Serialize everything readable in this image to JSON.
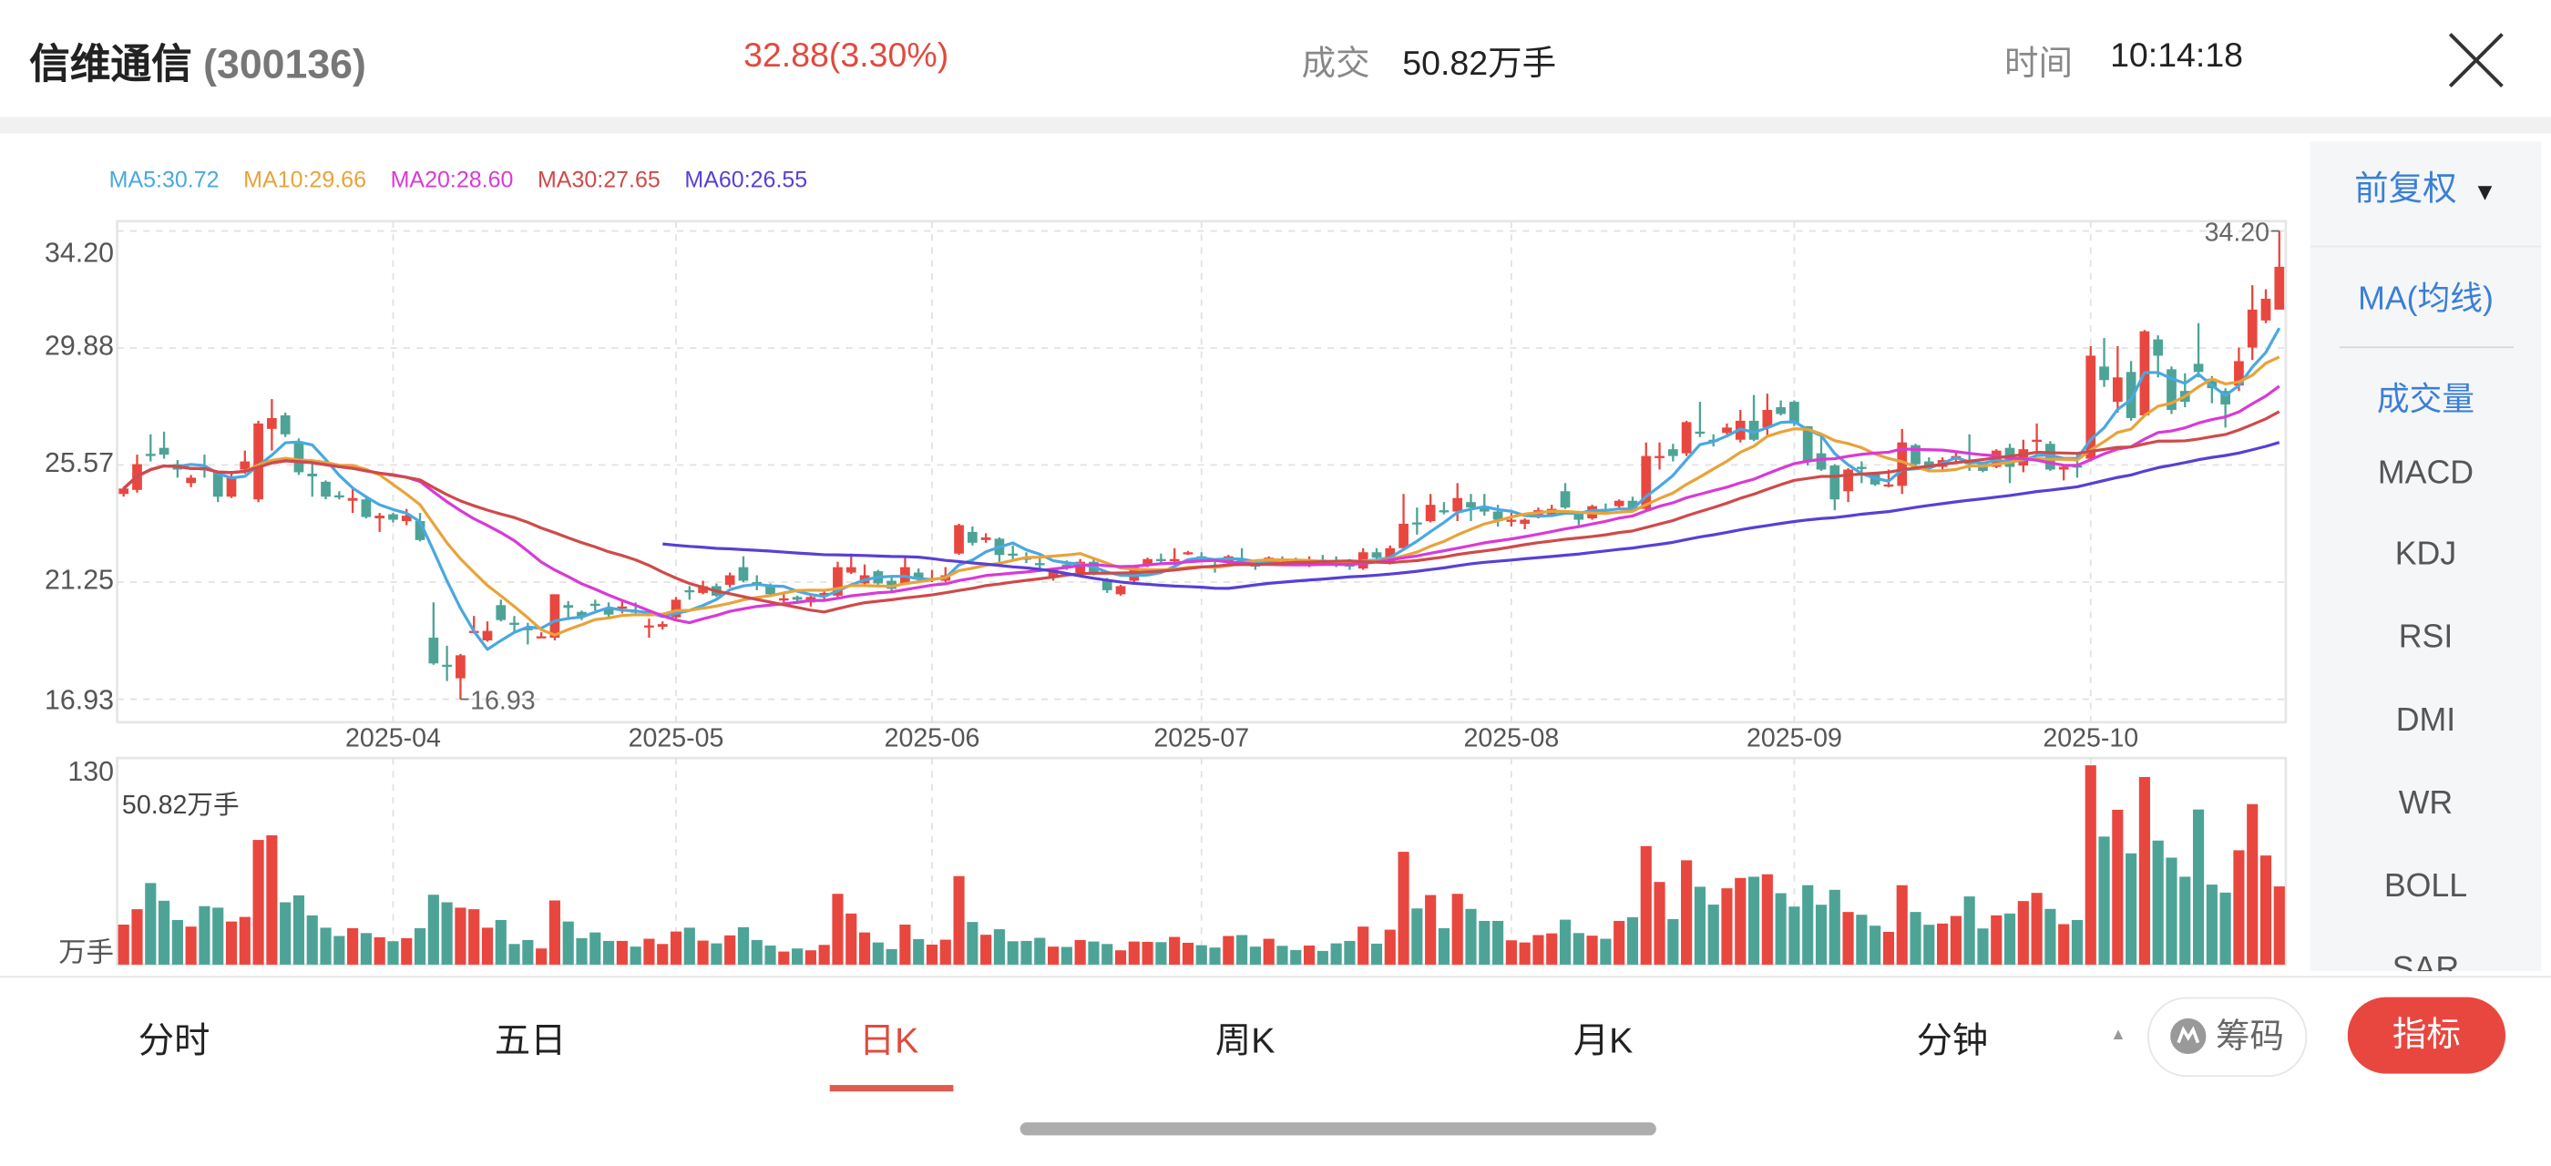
{
  "header": {
    "stock_name": "信维通信",
    "stock_code": "(300136)",
    "price_change": "32.88(3.30%)",
    "volume_label": "成交",
    "volume_value": "50.82万手",
    "time_label": "时间",
    "time_value": "10:14:18",
    "close_icon": "close-x-icon"
  },
  "legend": {
    "ma5": "MA5:30.72",
    "ma10": "MA10:29.66",
    "ma20": "MA20:28.60",
    "ma30": "MA30:27.65",
    "ma60": "MA60:26.55"
  },
  "colors": {
    "up": "#e8473f",
    "down": "#4ea397",
    "ma5": "#4aa8e0",
    "ma10": "#e8a33a",
    "ma20": "#d93ad6",
    "ma30": "#cf4a4a",
    "ma60": "#5a3fd4",
    "accent_blue": "#3a7fd6"
  },
  "side_panel": {
    "adjust": "前复权",
    "adjust_icon": "triangle-down-icon",
    "items": [
      {
        "label": "MA(均线)",
        "active": true
      },
      {
        "label": "成交量",
        "active": true
      },
      {
        "label": "MACD",
        "active": false
      },
      {
        "label": "KDJ",
        "active": false
      },
      {
        "label": "RSI",
        "active": false
      },
      {
        "label": "DMI",
        "active": false
      },
      {
        "label": "WR",
        "active": false
      },
      {
        "label": "BOLL",
        "active": false
      },
      {
        "label": "SAR",
        "active": false
      }
    ]
  },
  "tabs": [
    {
      "label": "分时",
      "active": false
    },
    {
      "label": "五日",
      "active": false
    },
    {
      "label": "日K",
      "active": true
    },
    {
      "label": "周K",
      "active": false
    },
    {
      "label": "月K",
      "active": false
    },
    {
      "label": "分钟",
      "active": false
    }
  ],
  "buttons": {
    "chips": "筹码",
    "chips_icon": "chips-logo-icon",
    "indicator": "指标"
  },
  "chart_data": {
    "type": "candlestick",
    "price_axis": {
      "ticks": [
        "34.20",
        "29.88",
        "25.57",
        "21.25",
        "16.93"
      ],
      "ylim": [
        16.08,
        34.56
      ],
      "grid": true
    },
    "x_ticks": [
      {
        "label": "2025-04",
        "index": 20
      },
      {
        "label": "2025-05",
        "index": 41
      },
      {
        "label": "2025-06",
        "index": 60
      },
      {
        "label": "2025-07",
        "index": 80
      },
      {
        "label": "2025-08",
        "index": 103
      },
      {
        "label": "2025-09",
        "index": 124
      },
      {
        "label": "2025-10",
        "index": 146
      }
    ],
    "max_label": "34.20",
    "min_label": "16.93",
    "moving_averages": [
      5,
      10,
      20,
      30,
      60
    ],
    "candle_fields": [
      "open",
      "high",
      "low",
      "close"
    ],
    "candles": [
      [
        24.5,
        24.75,
        24.4,
        24.7
      ],
      [
        24.65,
        25.95,
        24.55,
        25.6
      ],
      [
        25.98,
        26.7,
        25.7,
        25.9
      ],
      [
        26.2,
        26.8,
        25.8,
        25.95
      ],
      [
        25.6,
        25.75,
        25.1,
        25.4
      ],
      [
        24.9,
        25.2,
        24.75,
        25.1
      ],
      [
        25.45,
        25.95,
        25.1,
        25.4
      ],
      [
        25.3,
        25.35,
        24.2,
        24.4
      ],
      [
        24.4,
        25.3,
        24.35,
        25.15
      ],
      [
        25.4,
        26.1,
        25.25,
        25.7
      ],
      [
        24.3,
        27.2,
        24.2,
        27.1
      ],
      [
        26.9,
        28.0,
        26.1,
        27.3
      ],
      [
        27.4,
        27.5,
        26.6,
        26.7
      ],
      [
        26.4,
        26.55,
        25.2,
        25.3
      ],
      [
        25.25,
        25.6,
        24.4,
        25.15
      ],
      [
        24.95,
        25.0,
        24.3,
        24.4
      ],
      [
        24.45,
        24.6,
        24.3,
        24.4
      ],
      [
        24.25,
        24.7,
        23.8,
        24.35
      ],
      [
        24.3,
        24.45,
        23.6,
        23.65
      ],
      [
        23.6,
        23.8,
        23.1,
        23.7
      ],
      [
        23.75,
        23.8,
        23.45,
        23.55
      ],
      [
        23.5,
        23.95,
        23.35,
        23.7
      ],
      [
        23.5,
        23.8,
        22.75,
        22.8
      ],
      [
        19.2,
        20.5,
        18.2,
        18.25
      ],
      [
        18.2,
        18.9,
        17.6,
        18.15
      ],
      [
        17.7,
        18.6,
        16.93,
        18.55
      ],
      [
        19.4,
        20.0,
        19.35,
        19.45
      ],
      [
        19.1,
        19.8,
        19.05,
        19.45
      ],
      [
        20.4,
        20.6,
        19.8,
        19.85
      ],
      [
        19.75,
        20.0,
        19.4,
        19.7
      ],
      [
        19.55,
        19.75,
        18.95,
        19.5
      ],
      [
        19.2,
        19.4,
        19.2,
        19.25
      ],
      [
        19.2,
        20.8,
        19.1,
        20.8
      ],
      [
        20.4,
        20.55,
        19.85,
        20.3
      ],
      [
        20.15,
        20.2,
        19.85,
        19.97
      ],
      [
        20.45,
        20.6,
        20.2,
        20.4
      ],
      [
        20.25,
        20.5,
        19.95,
        20.05
      ],
      [
        20.3,
        20.55,
        20.1,
        20.35
      ],
      [
        20.2,
        20.5,
        20.05,
        20.15
      ],
      [
        19.6,
        19.9,
        19.2,
        19.65
      ],
      [
        19.6,
        19.8,
        19.5,
        19.7
      ],
      [
        19.95,
        20.7,
        19.9,
        20.6
      ],
      [
        20.95,
        21.1,
        20.6,
        20.9
      ],
      [
        20.85,
        21.3,
        20.8,
        21.1
      ],
      [
        21.1,
        21.2,
        20.7,
        20.75
      ],
      [
        21.15,
        21.6,
        21.05,
        21.5
      ],
      [
        21.8,
        22.2,
        21.25,
        21.3
      ],
      [
        21.25,
        21.5,
        20.95,
        21.2
      ],
      [
        21.15,
        21.2,
        20.7,
        20.8
      ],
      [
        20.6,
        20.8,
        20.5,
        20.65
      ],
      [
        20.7,
        20.75,
        20.45,
        20.6
      ],
      [
        20.5,
        20.75,
        20.35,
        20.7
      ],
      [
        20.8,
        20.95,
        20.6,
        20.85
      ],
      [
        20.75,
        22.0,
        20.7,
        21.8
      ],
      [
        21.6,
        22.3,
        21.55,
        21.8
      ],
      [
        21.2,
        21.9,
        21.1,
        21.5
      ],
      [
        21.65,
        21.7,
        21.15,
        21.2
      ],
      [
        21.3,
        21.45,
        20.9,
        21.0
      ],
      [
        21.2,
        22.15,
        21.15,
        21.8
      ],
      [
        21.6,
        21.75,
        21.3,
        21.35
      ],
      [
        21.35,
        21.7,
        21.25,
        21.4
      ],
      [
        21.3,
        21.8,
        21.25,
        21.5
      ],
      [
        22.3,
        23.4,
        22.25,
        23.35
      ],
      [
        23.1,
        23.3,
        22.6,
        22.7
      ],
      [
        22.8,
        23.05,
        22.7,
        22.9
      ],
      [
        22.85,
        22.9,
        22.0,
        22.25
      ],
      [
        22.3,
        22.6,
        22.1,
        22.25
      ],
      [
        22.15,
        22.35,
        21.95,
        22.1
      ],
      [
        21.95,
        22.15,
        21.7,
        21.9
      ],
      [
        21.4,
        21.75,
        21.3,
        21.7
      ],
      [
        21.9,
        22.05,
        21.7,
        21.85
      ],
      [
        21.6,
        22.1,
        21.5,
        22.0
      ],
      [
        22.0,
        22.1,
        21.5,
        21.6
      ],
      [
        21.3,
        21.4,
        20.85,
        20.95
      ],
      [
        20.8,
        21.15,
        20.75,
        21.1
      ],
      [
        21.3,
        21.85,
        21.2,
        21.8
      ],
      [
        21.9,
        22.15,
        21.8,
        22.1
      ],
      [
        22.1,
        22.3,
        21.9,
        22.05
      ],
      [
        22.05,
        22.5,
        21.85,
        22.1
      ],
      [
        22.3,
        22.4,
        22.25,
        22.35
      ],
      [
        22.2,
        22.35,
        22.05,
        22.1
      ],
      [
        21.85,
        22.05,
        21.6,
        21.8
      ],
      [
        21.95,
        22.25,
        21.85,
        22.2
      ],
      [
        22.1,
        22.5,
        21.9,
        22.05
      ],
      [
        21.9,
        22.0,
        21.7,
        21.85
      ],
      [
        22.0,
        22.2,
        21.9,
        22.15
      ],
      [
        22.1,
        22.2,
        21.9,
        22.05
      ],
      [
        22.0,
        22.15,
        21.85,
        21.95
      ],
      [
        21.95,
        22.2,
        21.8,
        22.0
      ],
      [
        22.05,
        22.25,
        21.85,
        22.0
      ],
      [
        22.0,
        22.2,
        21.8,
        21.95
      ],
      [
        21.9,
        22.1,
        21.7,
        21.85
      ],
      [
        21.75,
        22.5,
        21.7,
        22.35
      ],
      [
        22.35,
        22.5,
        22.1,
        22.15
      ],
      [
        21.95,
        22.6,
        21.9,
        22.5
      ],
      [
        22.5,
        24.5,
        22.45,
        23.4
      ],
      [
        23.45,
        24.0,
        23.0,
        23.4
      ],
      [
        23.5,
        24.5,
        23.45,
        24.1
      ],
      [
        23.9,
        24.2,
        23.75,
        23.85
      ],
      [
        23.85,
        24.9,
        23.5,
        24.35
      ],
      [
        24.2,
        24.5,
        23.5,
        24.0
      ],
      [
        24.05,
        24.5,
        23.7,
        23.85
      ],
      [
        23.85,
        24.1,
        23.3,
        23.55
      ],
      [
        23.5,
        23.8,
        23.3,
        23.55
      ],
      [
        23.4,
        23.6,
        23.2,
        23.55
      ],
      [
        23.65,
        24.0,
        23.6,
        23.9
      ],
      [
        23.75,
        24.1,
        23.7,
        23.95
      ],
      [
        24.6,
        24.9,
        23.95,
        24.0
      ],
      [
        23.8,
        23.85,
        23.35,
        23.55
      ],
      [
        23.6,
        24.1,
        23.55,
        24.05
      ],
      [
        23.95,
        24.15,
        23.75,
        23.9
      ],
      [
        24.05,
        24.3,
        24.0,
        24.25
      ],
      [
        24.25,
        24.4,
        23.9,
        23.95
      ],
      [
        23.95,
        26.4,
        23.9,
        25.9
      ],
      [
        25.85,
        26.4,
        25.4,
        25.9
      ],
      [
        26.15,
        26.35,
        25.7,
        25.9
      ],
      [
        26.0,
        27.2,
        25.9,
        27.15
      ],
      [
        26.8,
        27.9,
        26.6,
        26.75
      ],
      [
        26.5,
        26.7,
        26.25,
        26.45
      ],
      [
        26.75,
        27.1,
        26.7,
        26.95
      ],
      [
        26.5,
        27.6,
        26.4,
        27.2
      ],
      [
        27.2,
        28.15,
        26.45,
        26.5
      ],
      [
        26.95,
        28.2,
        26.6,
        27.6
      ],
      [
        27.7,
        27.95,
        27.4,
        27.45
      ],
      [
        27.9,
        27.95,
        27.0,
        27.1
      ],
      [
        27.0,
        27.0,
        25.55,
        25.7
      ],
      [
        26.0,
        26.6,
        25.35,
        25.4
      ],
      [
        25.55,
        25.6,
        23.9,
        24.3
      ],
      [
        24.6,
        25.45,
        24.2,
        25.4
      ],
      [
        25.5,
        25.7,
        24.9,
        25.45
      ],
      [
        25.25,
        25.3,
        24.8,
        24.85
      ],
      [
        24.8,
        25.4,
        24.75,
        24.85
      ],
      [
        24.8,
        26.9,
        24.5,
        26.4
      ],
      [
        26.3,
        26.35,
        25.55,
        25.6
      ],
      [
        25.7,
        25.85,
        25.5,
        25.55
      ],
      [
        25.5,
        25.85,
        25.4,
        25.75
      ],
      [
        25.85,
        26.1,
        25.6,
        25.9
      ],
      [
        25.75,
        26.7,
        25.35,
        25.6
      ],
      [
        25.65,
        25.7,
        25.3,
        25.35
      ],
      [
        25.5,
        26.15,
        25.45,
        26.1
      ],
      [
        26.2,
        26.35,
        24.9,
        25.5
      ],
      [
        25.55,
        26.5,
        25.3,
        26.15
      ],
      [
        26.45,
        27.1,
        25.95,
        26.5
      ],
      [
        26.35,
        26.45,
        25.35,
        25.4
      ],
      [
        25.4,
        25.55,
        25.0,
        25.5
      ],
      [
        25.55,
        25.95,
        25.1,
        25.5
      ],
      [
        25.8,
        29.95,
        25.7,
        29.6
      ],
      [
        29.2,
        30.25,
        28.45,
        28.7
      ],
      [
        27.9,
        29.95,
        27.5,
        28.8
      ],
      [
        29.0,
        29.4,
        27.2,
        27.3
      ],
      [
        27.4,
        30.55,
        27.35,
        30.5
      ],
      [
        30.2,
        30.35,
        28.8,
        29.6
      ],
      [
        29.1,
        29.2,
        27.45,
        27.6
      ],
      [
        28.3,
        28.95,
        27.7,
        27.9
      ],
      [
        29.3,
        30.8,
        28.8,
        29.0
      ],
      [
        28.75,
        28.85,
        27.85,
        28.4
      ],
      [
        28.3,
        28.4,
        26.95,
        27.8
      ],
      [
        28.5,
        29.9,
        28.3,
        29.4
      ],
      [
        29.9,
        32.2,
        29.45,
        31.3
      ],
      [
        30.9,
        32.05,
        30.8,
        31.7
      ],
      [
        31.3,
        34.2,
        31.3,
        32.88
      ]
    ],
    "volume_axis": {
      "max_label": "130",
      "unit_label": "万手",
      "current_label": "50.82万手",
      "ylim": [
        0,
        130
      ]
    },
    "volume": [
      26,
      36,
      53,
      41.5,
      29,
      24.7,
      38,
      37,
      28,
      31,
      81,
      84,
      40.5,
      45,
      32,
      24,
      18.6,
      23.7,
      20.5,
      17.8,
      15.2,
      17.2,
      23.7,
      45.4,
      40.5,
      37,
      36,
      24,
      29,
      13.4,
      16,
      10.5,
      41.7,
      28,
      17.2,
      20.9,
      15.4,
      15.4,
      11.7,
      16.8,
      13.4,
      21.5,
      24,
      15.6,
      13.8,
      19,
      24.3,
      16,
      12.4,
      8.5,
      10.5,
      9.3,
      12.8,
      46,
      33.2,
      20.9,
      14.4,
      10.1,
      26,
      16.6,
      13,
      16.2,
      57.5,
      27.7,
      19.4,
      23,
      15.2,
      15.4,
      17.4,
      11.7,
      11.5,
      16,
      15,
      13.4,
      9.3,
      15,
      14.8,
      14.6,
      18,
      14.2,
      12.6,
      11.1,
      18.6,
      19.2,
      11.7,
      16.8,
      12.2,
      9.5,
      12.4,
      8.9,
      13.8,
      15.4,
      24.7,
      13.6,
      22.7,
      73.3,
      36.5,
      45.2,
      23.7,
      46,
      36.2,
      28.4,
      28.4,
      15.8,
      14.4,
      19.2,
      20.3,
      29.2,
      20.5,
      18.8,
      16.8,
      28.4,
      30.8,
      77,
      53.7,
      29.6,
      67.8,
      50.6,
      39,
      49.6,
      56.3,
      57.1,
      58.7,
      46.4,
      37.7,
      51.6,
      38.9,
      48.6,
      34.2,
      32.4,
      25.3,
      21.3,
      51.6,
      34.2,
      25.9,
      26.7,
      31.6,
      44.3,
      23.5,
      32,
      33.2,
      41.3,
      46.6,
      36.2,
      26.3,
      29,
      129.5,
      83.2,
      100.6,
      72.3,
      121.9,
      80.6,
      69.5,
      57.1,
      100.8,
      52,
      46.8,
      74.3,
      104.3,
      70.9,
      50.82
    ]
  }
}
